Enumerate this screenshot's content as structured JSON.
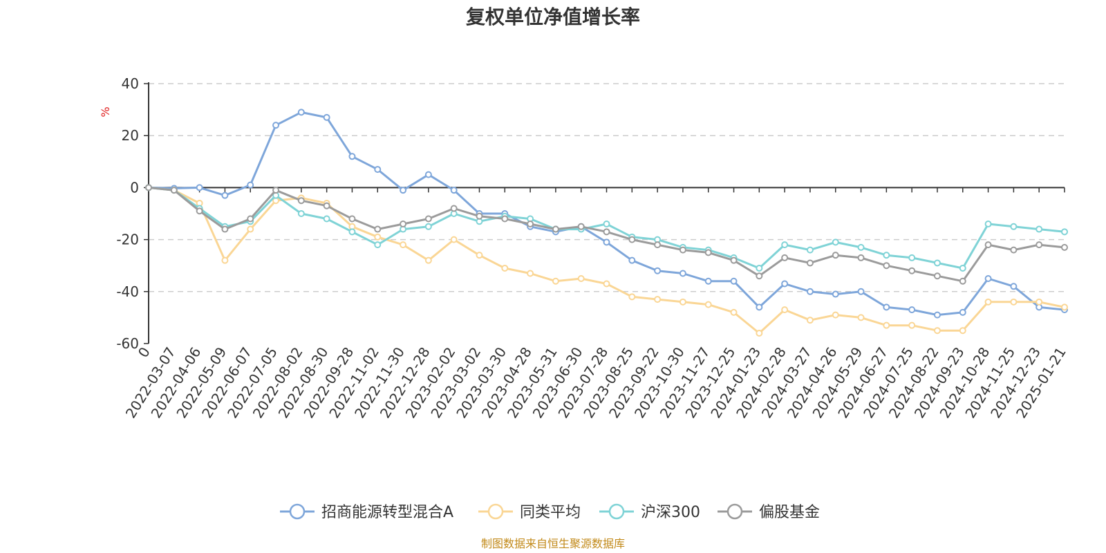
{
  "chart_data": {
    "type": "line",
    "title": "复权单位净值增长率",
    "ylabel": "%",
    "ylim": [
      -60,
      40
    ],
    "yticks": [
      40,
      20,
      0,
      -20,
      -40,
      -60
    ],
    "grid": true,
    "legend_position": "bottom",
    "source": "制图数据来自恒生聚源数据库",
    "categories": [
      "0",
      "2022-03-07",
      "2022-04-06",
      "2022-05-09",
      "2022-06-07",
      "2022-07-05",
      "2022-08-02",
      "2022-08-30",
      "2022-09-28",
      "2022-11-02",
      "2022-11-30",
      "2022-12-28",
      "2023-02-02",
      "2023-03-02",
      "2023-03-30",
      "2023-04-28",
      "2023-05-31",
      "2023-06-30",
      "2023-07-28",
      "2023-08-25",
      "2023-09-22",
      "2023-10-30",
      "2023-11-27",
      "2023-12-25",
      "2024-01-23",
      "2024-02-28",
      "2024-03-27",
      "2024-04-26",
      "2024-05-29",
      "2024-06-27",
      "2024-07-25",
      "2024-08-22",
      "2024-09-23",
      "2024-10-28",
      "2024-11-25",
      "2024-12-23",
      "2025-01-21"
    ],
    "series": [
      {
        "name": "招商能源转型混合A",
        "color": "#7ea6da",
        "values": [
          0,
          -0.3,
          0,
          -3,
          1,
          24,
          29,
          27,
          12,
          7,
          -1,
          5,
          -1,
          -10,
          -10,
          -15,
          -17,
          -15,
          -21,
          -28,
          -32,
          -33,
          -36,
          -36,
          -46,
          -37,
          -40,
          -41,
          -40,
          -46,
          -47,
          -49,
          -48,
          -35,
          -38,
          -46,
          -47
        ]
      },
      {
        "name": "同类平均",
        "color": "#fad695",
        "values": [
          0,
          -1,
          -6,
          -28,
          -16,
          -5,
          -4,
          -6,
          -15,
          -19,
          -22,
          -28,
          -20,
          -26,
          -31,
          -33,
          -36,
          -35,
          -37,
          -42,
          -43,
          -44,
          -45,
          -48,
          -56,
          -47,
          -51,
          -49,
          -50,
          -53,
          -53,
          -55,
          -55,
          -44,
          -44,
          -44,
          -46
        ]
      },
      {
        "name": "沪深300",
        "color": "#7fd3d6",
        "values": [
          0,
          -1,
          -8,
          -15,
          -13,
          -3,
          -10,
          -12,
          -17,
          -22,
          -16,
          -15,
          -10,
          -13,
          -11,
          -12,
          -16,
          -16,
          -14,
          -19,
          -20,
          -23,
          -24,
          -27,
          -31,
          -22,
          -24,
          -21,
          -23,
          -26,
          -27,
          -29,
          -31,
          -14,
          -15,
          -16,
          -17
        ]
      },
      {
        "name": "偏股基金",
        "color": "#9b9b9b",
        "values": [
          0,
          -1,
          -9,
          -16,
          -12,
          -1,
          -5,
          -7,
          -12,
          -16,
          -14,
          -12,
          -8,
          -11,
          -12,
          -14,
          -16,
          -15,
          -17,
          -20,
          -22,
          -24,
          -25,
          -28,
          -34,
          -27,
          -29,
          -26,
          -27,
          -30,
          -32,
          -34,
          -36,
          -22,
          -24,
          -22,
          -23
        ]
      }
    ]
  }
}
